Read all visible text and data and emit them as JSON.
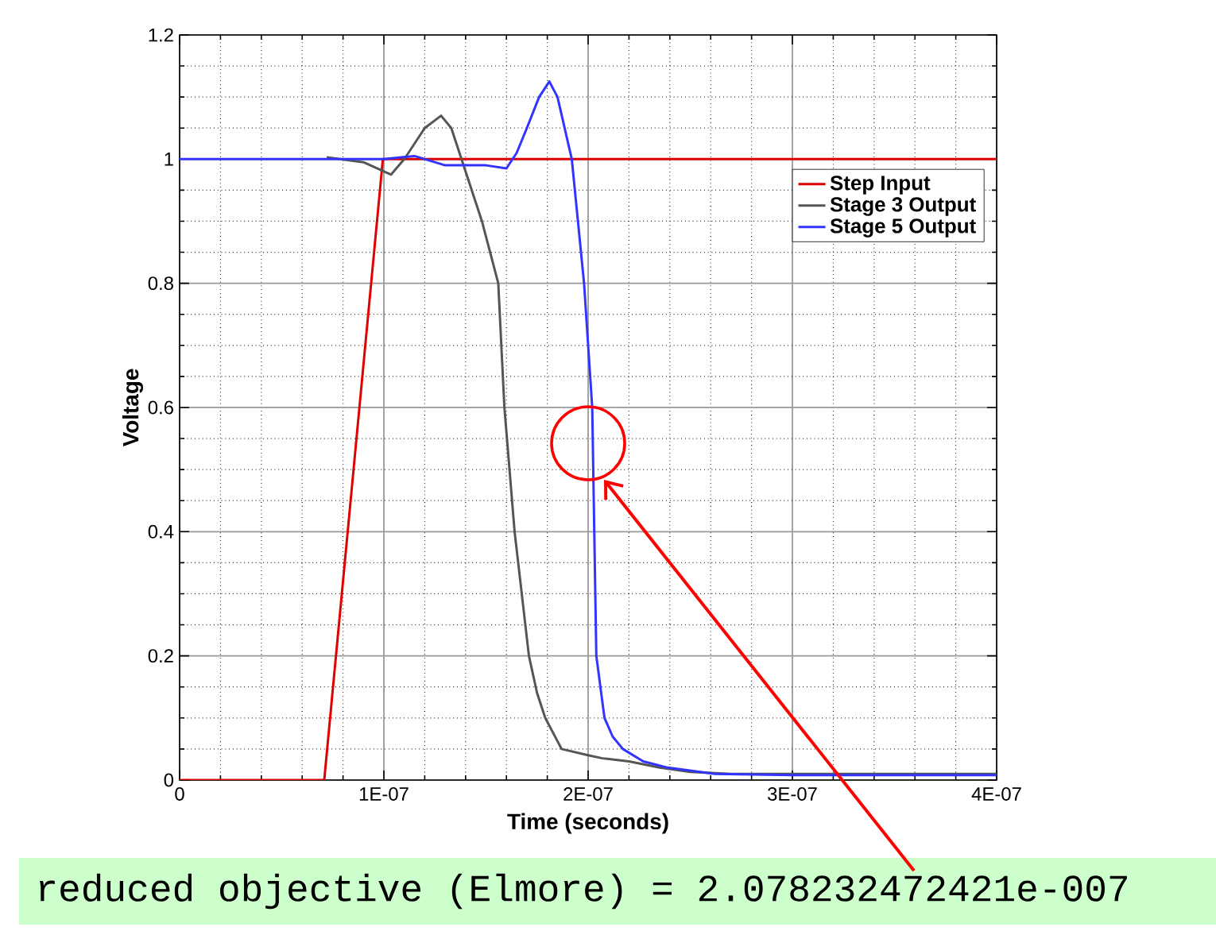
{
  "chart_data": {
    "type": "line",
    "xlabel": "Time (seconds)",
    "ylabel": "Voltage",
    "xlim": [
      0,
      4e-07
    ],
    "ylim": [
      0,
      1.2
    ],
    "xticks": [
      0,
      {
        "value": 1e-07,
        "label": "1E-07"
      },
      {
        "value": 2e-07,
        "label": "2E-07"
      },
      {
        "value": 3e-07,
        "label": "3E-07"
      },
      {
        "value": 4e-07,
        "label": "4E-07"
      }
    ],
    "yticks": [
      0,
      0.2,
      0.4,
      0.6,
      0.8,
      1,
      1.2
    ],
    "grid": true,
    "legend": "top right",
    "marker": "none",
    "line_style": "solid",
    "series": [
      {
        "name": "Step Input",
        "color": "#e00000",
        "x": [
          0,
          7.08e-08,
          9.95e-08,
          4e-07
        ],
        "values": [
          0,
          0,
          1,
          1
        ]
      },
      {
        "name": "Stage 3 Output",
        "color": "#555555",
        "x": [
          7.2e-08,
          9e-08,
          1.035e-07,
          1.1e-07,
          1.2e-07,
          1.28e-07,
          1.33e-07,
          1.38e-07,
          1.48e-07,
          1.56e-07,
          1.59e-07,
          1.64e-07,
          1.71e-07,
          1.75e-07,
          1.79e-07,
          1.87e-07,
          2e-07,
          2.07e-07,
          2.2e-07,
          2.35e-07,
          2.5e-07,
          2.7e-07,
          3e-07,
          4e-07
        ],
        "values": [
          1.003,
          0.995,
          0.975,
          1.0,
          1.05,
          1.07,
          1.05,
          1.0,
          0.9,
          0.8,
          0.6,
          0.4,
          0.2,
          0.14,
          0.1,
          0.05,
          0.04,
          0.035,
          0.03,
          0.02,
          0.013,
          0.01,
          0.01,
          0.01
        ]
      },
      {
        "name": "Stage 5 Output",
        "color": "#3333ff",
        "x": [
          0,
          1e-07,
          1.15e-07,
          1.3e-07,
          1.5e-07,
          1.6e-07,
          1.65e-07,
          1.7e-07,
          1.76e-07,
          1.81e-07,
          1.85e-07,
          1.92e-07,
          1.98e-07,
          2.02e-07,
          2.03e-07,
          2.04e-07,
          2.08e-07,
          2.12e-07,
          2.17e-07,
          2.27e-07,
          2.39e-07,
          2.62e-07,
          3e-07,
          4e-07
        ],
        "values": [
          1,
          1,
          1.005,
          0.99,
          0.99,
          0.985,
          1.01,
          1.05,
          1.1,
          1.125,
          1.1,
          1.0,
          0.8,
          0.6,
          0.4,
          0.2,
          0.1,
          0.07,
          0.05,
          0.03,
          0.02,
          0.01,
          0.008,
          0.008
        ]
      }
    ],
    "annotations": [
      "reduced objective (Elmore) = 2.078232472421e-007"
    ]
  }
}
